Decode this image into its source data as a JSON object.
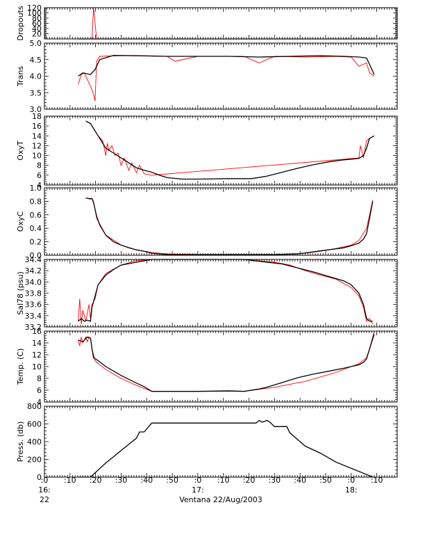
{
  "colors": {
    "raw": "#ff0000",
    "processed": "#000000",
    "axis": "#000000"
  },
  "chart_data": [
    {
      "type": "line",
      "ylabel": "Dropouts",
      "ylim": [
        0,
        120
      ],
      "ylog": false,
      "yticks": [
        20,
        40,
        60,
        80,
        100,
        120
      ],
      "yticklabels": [
        "20",
        "40",
        "60",
        "80",
        "100",
        "120"
      ],
      "series": [
        {
          "role": "raw",
          "x": [
            16.22,
            16.31,
            16.32,
            16.34,
            16.5,
            16.7,
            17.0,
            17.3,
            17.6,
            17.9,
            18.15
          ],
          "y": [
            0,
            0,
            120,
            0,
            0,
            0,
            0,
            0,
            0,
            0,
            0
          ]
        },
        {
          "role": "processed",
          "x": [
            16.22,
            16.5,
            17.0,
            17.5,
            18.0,
            18.15
          ],
          "y": [
            0,
            0,
            0,
            0,
            0,
            0
          ]
        }
      ]
    },
    {
      "type": "line",
      "ylabel": "Trans",
      "ylim": [
        3.0,
        5.0
      ],
      "ylog": false,
      "yticks": [
        3.0,
        3.5,
        4.0,
        4.5,
        5.0
      ],
      "yticklabels": [
        "3.0",
        "3.5",
        "4.0",
        "4.5",
        "5.0"
      ],
      "series": [
        {
          "role": "raw",
          "x": [
            16.22,
            16.24,
            16.26,
            16.28,
            16.3,
            16.32,
            16.33,
            16.34,
            16.36,
            16.5,
            16.8,
            16.85,
            17.0,
            17.3,
            17.4,
            17.5,
            17.7,
            17.9,
            18.0,
            18.05,
            18.1,
            18.12,
            18.15
          ],
          "y": [
            3.75,
            4.05,
            4.1,
            3.9,
            3.7,
            3.45,
            3.25,
            4.45,
            4.6,
            4.62,
            4.6,
            4.45,
            4.6,
            4.6,
            4.4,
            4.6,
            4.58,
            4.6,
            4.58,
            4.3,
            4.4,
            4.1,
            4.0
          ]
        },
        {
          "role": "processed",
          "x": [
            16.22,
            16.25,
            16.3,
            16.33,
            16.36,
            16.45,
            16.6,
            16.8,
            17.0,
            17.2,
            17.4,
            17.6,
            17.8,
            17.95,
            18.05,
            18.1,
            18.13,
            18.15
          ],
          "y": [
            4.0,
            4.1,
            4.05,
            4.2,
            4.5,
            4.63,
            4.62,
            4.6,
            4.6,
            4.6,
            4.58,
            4.6,
            4.62,
            4.6,
            4.58,
            4.55,
            4.25,
            4.05
          ]
        }
      ]
    },
    {
      "type": "line",
      "ylabel": "OxyT",
      "ylim": [
        4,
        18
      ],
      "ylog": false,
      "yticks": [
        4,
        6,
        8,
        10,
        12,
        14,
        16,
        18
      ],
      "yticklabels": [
        "4",
        "6",
        "8",
        "10",
        "12",
        "14",
        "16",
        "18"
      ],
      "series": [
        {
          "role": "raw",
          "x": [
            16.27,
            16.3,
            16.35,
            16.38,
            16.4,
            16.41,
            16.42,
            16.44,
            16.46,
            16.48,
            16.5,
            16.52,
            16.55,
            16.57,
            16.6,
            16.62,
            16.65,
            16.7,
            18.05,
            18.06,
            18.08,
            18.1,
            18.12
          ],
          "y": [
            17.0,
            16.5,
            14.0,
            13.0,
            10.0,
            12.5,
            11.0,
            12.0,
            10.0,
            10.5,
            8.0,
            9.5,
            7.0,
            8.5,
            6.5,
            8.0,
            6.3,
            6.0,
            9.5,
            12.0,
            9.5,
            13.0,
            13.5
          ]
        },
        {
          "role": "processed",
          "x": [
            16.27,
            16.3,
            16.35,
            16.4,
            16.45,
            16.5,
            16.55,
            16.6,
            16.65,
            16.7,
            16.75,
            16.8,
            16.9,
            17.0,
            17.2,
            17.35,
            17.45,
            17.55,
            17.65,
            17.75,
            17.85,
            17.95,
            18.05,
            18.08,
            18.1,
            18.12,
            18.15
          ],
          "y": [
            17.0,
            16.5,
            14.0,
            11.5,
            10.5,
            9.5,
            8.5,
            7.5,
            7.0,
            6.6,
            6.0,
            5.5,
            5.2,
            5.2,
            5.3,
            5.3,
            5.8,
            6.6,
            7.4,
            8.1,
            8.7,
            9.1,
            9.4,
            10.0,
            11.5,
            13.5,
            14.0
          ]
        }
      ]
    },
    {
      "type": "line",
      "ylabel": "OxyC",
      "ylim": [
        0.0,
        1.0
      ],
      "ylog": false,
      "yticks": [
        0.0,
        0.2,
        0.4,
        0.6,
        0.8,
        1.0
      ],
      "yticklabels": [
        "0.0",
        "0.2",
        "0.4",
        "0.6",
        "0.8",
        "1.0"
      ],
      "series": [
        {
          "role": "raw",
          "x": [
            16.27,
            16.3,
            16.31,
            16.32,
            16.34,
            16.4,
            16.5,
            16.6,
            16.7,
            16.8,
            17.0,
            17.3,
            17.5,
            17.7,
            17.8,
            17.9,
            18.0,
            18.05,
            18.1,
            18.12,
            18.14
          ],
          "y": [
            0.85,
            0.83,
            0.84,
            0.8,
            0.55,
            0.3,
            0.15,
            0.08,
            0.04,
            0.02,
            0.01,
            0.01,
            0.01,
            0.03,
            0.06,
            0.1,
            0.15,
            0.22,
            0.4,
            0.6,
            0.82
          ]
        },
        {
          "role": "processed",
          "x": [
            16.27,
            16.29,
            16.31,
            16.32,
            16.34,
            16.36,
            16.4,
            16.45,
            16.5,
            16.55,
            16.6,
            16.65,
            16.7,
            16.8,
            17.0,
            17.3,
            17.5,
            17.65,
            17.75,
            17.85,
            17.95,
            18.0,
            18.05,
            18.08,
            18.1,
            18.12,
            18.14
          ],
          "y": [
            0.85,
            0.84,
            0.84,
            0.78,
            0.58,
            0.45,
            0.3,
            0.2,
            0.15,
            0.11,
            0.08,
            0.06,
            0.03,
            0.01,
            0.01,
            0.01,
            0.01,
            0.02,
            0.05,
            0.08,
            0.11,
            0.14,
            0.18,
            0.24,
            0.32,
            0.55,
            0.8
          ]
        }
      ]
    },
    {
      "type": "line",
      "ylabel": "Sal78 (psu)",
      "ylim": [
        33.2,
        34.4
      ],
      "ylog": false,
      "yticks": [
        33.2,
        33.4,
        33.6,
        33.8,
        34.0,
        34.2,
        34.4
      ],
      "yticklabels": [
        "33.2",
        "33.4",
        "33.6",
        "33.8",
        "34.0",
        "34.2",
        "34.4"
      ],
      "series": [
        {
          "role": "raw",
          "x": [
            16.22,
            16.23,
            16.24,
            16.25,
            16.27,
            16.29,
            16.3,
            16.31,
            16.33,
            16.35,
            16.4,
            16.5,
            16.6,
            16.7,
            17.0,
            17.3,
            17.5,
            17.6,
            17.7,
            17.8,
            17.9,
            18.0,
            18.05,
            18.08,
            18.1,
            18.12,
            18.14
          ],
          "y": [
            33.3,
            33.7,
            33.25,
            33.5,
            33.3,
            33.6,
            33.35,
            33.6,
            33.7,
            33.95,
            34.15,
            34.3,
            34.38,
            34.4,
            34.4,
            34.4,
            34.35,
            34.3,
            34.2,
            34.12,
            34.05,
            33.9,
            33.75,
            33.55,
            33.3,
            33.35,
            33.25
          ]
        },
        {
          "role": "processed",
          "x": [
            16.22,
            16.24,
            16.26,
            16.28,
            16.3,
            16.31,
            16.33,
            16.35,
            16.4,
            16.45,
            16.5,
            16.6,
            16.7,
            17.0,
            17.2,
            17.3,
            17.45,
            17.55,
            17.65,
            17.75,
            17.85,
            17.95,
            18.0,
            18.05,
            18.08,
            18.1,
            18.12,
            18.14
          ],
          "y": [
            33.3,
            33.35,
            33.3,
            33.32,
            33.3,
            33.55,
            33.75,
            33.95,
            34.12,
            34.22,
            34.3,
            34.35,
            34.4,
            34.4,
            34.4,
            34.4,
            34.35,
            34.32,
            34.25,
            34.18,
            34.1,
            34.02,
            33.95,
            33.8,
            33.6,
            33.35,
            33.3,
            33.3
          ]
        }
      ]
    },
    {
      "type": "line",
      "ylabel": "Temp. (C)",
      "ylim": [
        4,
        16
      ],
      "ylog": false,
      "yticks": [
        4,
        6,
        8,
        10,
        12,
        14,
        16
      ],
      "yticklabels": [
        "4",
        "6",
        "8",
        "10",
        "12",
        "14",
        "16"
      ],
      "series": [
        {
          "role": "raw",
          "x": [
            16.22,
            16.23,
            16.24,
            16.25,
            16.27,
            16.28,
            16.29,
            16.3,
            16.31,
            16.33,
            16.35,
            16.4,
            16.5,
            16.6,
            16.7,
            17.0,
            17.3,
            17.5,
            17.7,
            17.9,
            18.05,
            18.1,
            18.12,
            18.15
          ],
          "y": [
            14.5,
            13.5,
            15.0,
            14.0,
            15.0,
            14.2,
            15.0,
            14.8,
            13.0,
            11.0,
            10.5,
            9.5,
            8.0,
            6.8,
            5.8,
            5.8,
            5.8,
            6.5,
            7.5,
            9.0,
            10.5,
            11.5,
            13.0,
            16.0
          ]
        },
        {
          "role": "processed",
          "x": [
            16.22,
            16.25,
            16.28,
            16.3,
            16.31,
            16.32,
            16.35,
            16.4,
            16.5,
            16.6,
            16.65,
            16.7,
            17.0,
            17.2,
            17.3,
            17.4,
            17.45,
            17.55,
            17.65,
            17.75,
            17.85,
            17.95,
            18.05,
            18.08,
            18.1,
            18.12,
            18.15
          ],
          "y": [
            14.5,
            14.2,
            15.0,
            14.8,
            13.0,
            11.5,
            11.0,
            10.0,
            8.5,
            7.2,
            6.6,
            5.8,
            5.8,
            5.9,
            5.8,
            6.2,
            6.5,
            7.3,
            8.1,
            8.7,
            9.2,
            9.7,
            10.3,
            10.7,
            11.3,
            13.0,
            15.5
          ]
        }
      ]
    },
    {
      "type": "line",
      "ylabel": "Press. (db)",
      "ylim": [
        0,
        800
      ],
      "ylog": false,
      "yticks": [
        0,
        200,
        400,
        600,
        800
      ],
      "yticklabels": [
        "0",
        "200",
        "400",
        "600",
        "800"
      ],
      "series": [
        {
          "role": "raw",
          "x": [
            16.22,
            16.25,
            16.3,
            16.35,
            16.4,
            16.45,
            16.5,
            16.55,
            16.6,
            16.62,
            16.65,
            16.68,
            16.7,
            17.0,
            17.2,
            17.3,
            17.38,
            17.4,
            17.42,
            17.45,
            17.47,
            17.5,
            17.58,
            17.6,
            17.7,
            17.8,
            17.9,
            18.0,
            18.1,
            18.14
          ],
          "y": [
            0,
            0,
            0,
            80,
            160,
            230,
            300,
            370,
            440,
            510,
            510,
            570,
            610,
            610,
            610,
            610,
            610,
            640,
            620,
            640,
            620,
            570,
            570,
            500,
            350,
            270,
            170,
            100,
            30,
            0
          ]
        },
        {
          "role": "processed",
          "x": [
            16.22,
            16.25,
            16.3,
            16.35,
            16.4,
            16.45,
            16.5,
            16.55,
            16.6,
            16.62,
            16.65,
            16.68,
            16.7,
            17.0,
            17.2,
            17.3,
            17.38,
            17.4,
            17.42,
            17.45,
            17.47,
            17.5,
            17.58,
            17.6,
            17.7,
            17.8,
            17.9,
            18.0,
            18.1,
            18.14
          ],
          "y": [
            0,
            0,
            0,
            80,
            160,
            230,
            300,
            370,
            440,
            510,
            510,
            570,
            610,
            610,
            610,
            610,
            610,
            640,
            620,
            640,
            620,
            570,
            570,
            500,
            350,
            270,
            170,
            100,
            30,
            0
          ]
        }
      ]
    }
  ],
  "x_axis": {
    "xlim": [
      16.0,
      18.3
    ],
    "ticks": [
      {
        "x": 16.0,
        "label": ":0"
      },
      {
        "x": 16.1667,
        "label": ":10"
      },
      {
        "x": 16.3333,
        "label": ":20"
      },
      {
        "x": 16.5,
        "label": ":30"
      },
      {
        "x": 16.6667,
        "label": ":40"
      },
      {
        "x": 16.8333,
        "label": ":50"
      },
      {
        "x": 17.0,
        "label": ":0"
      },
      {
        "x": 17.1667,
        "label": ":10"
      },
      {
        "x": 17.3333,
        "label": ":20"
      },
      {
        "x": 17.5,
        "label": ":30"
      },
      {
        "x": 17.6667,
        "label": ":40"
      },
      {
        "x": 17.8333,
        "label": ":50"
      },
      {
        "x": 18.0,
        "label": ":0"
      },
      {
        "x": 18.1667,
        "label": ":10"
      }
    ],
    "hour_labels": [
      {
        "x": 16.0,
        "label": "16:"
      },
      {
        "x": 17.0,
        "label": "17:"
      },
      {
        "x": 18.0,
        "label": "18:"
      }
    ],
    "day_label": {
      "x": 16.0,
      "label": "22"
    },
    "xlabel": "Ventana 22/Aug/2003"
  }
}
